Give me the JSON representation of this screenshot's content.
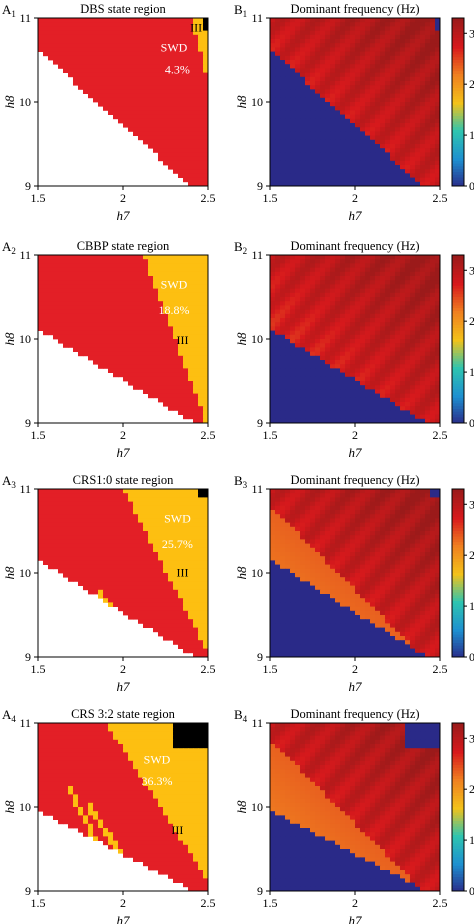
{
  "figure": {
    "colorbar": {
      "ticks": [
        "0",
        "1",
        "2",
        "3"
      ],
      "range": [
        0,
        3.3
      ],
      "colors": [
        "#2a2a88",
        "#1e90d0",
        "#2ec4b0",
        "#f2c21a",
        "#f08020",
        "#d7191c",
        "#9b1a1a"
      ]
    }
  },
  "chart_data": [
    {
      "id": "A1",
      "panel_letter": "A",
      "panel_sub": "1",
      "type": "heatmap",
      "title": "DBS state region",
      "xlabel": "h7",
      "ylabel": "h8",
      "xlim": [
        1.5,
        2.5
      ],
      "ylim": [
        9,
        11
      ],
      "xticks": [
        "1.5",
        "2",
        "2.5"
      ],
      "yticks": [
        "9",
        "10",
        "11"
      ],
      "regions": [
        {
          "name": "white",
          "color": "#ffffff"
        },
        {
          "name": "normal",
          "color": "#e31f26"
        },
        {
          "name": "SWD",
          "color": "#fdbf11"
        },
        {
          "name": "saturated",
          "color": "#000000"
        }
      ],
      "annotations": [
        {
          "text": "III"
        },
        {
          "text": "SWD"
        },
        {
          "text": "4.3%"
        }
      ],
      "swd_fraction": 4.3
    },
    {
      "id": "B1",
      "panel_letter": "B",
      "panel_sub": "1",
      "type": "heatmap",
      "title": "Dominant frequency (Hz)",
      "xlabel": "h7",
      "ylabel": "h8",
      "xlim": [
        1.5,
        2.5
      ],
      "ylim": [
        9,
        11
      ],
      "xticks": [
        "1.5",
        "2",
        "2.5"
      ],
      "yticks": [
        "9",
        "10",
        "11"
      ],
      "zrange": [
        0,
        3.3
      ],
      "low_region_value": 0,
      "max_frequency": 3.3
    },
    {
      "id": "A2",
      "panel_letter": "A",
      "panel_sub": "2",
      "type": "heatmap",
      "title": "CBBP state region",
      "xlabel": "h7",
      "ylabel": "h8",
      "xlim": [
        1.5,
        2.5
      ],
      "ylim": [
        9,
        11
      ],
      "xticks": [
        "1.5",
        "2",
        "2.5"
      ],
      "yticks": [
        "9",
        "10",
        "11"
      ],
      "annotations": [
        {
          "text": "SWD"
        },
        {
          "text": "18.8%"
        },
        {
          "text": "III"
        }
      ],
      "swd_fraction": 18.8
    },
    {
      "id": "B2",
      "panel_letter": "B",
      "panel_sub": "2",
      "type": "heatmap",
      "title": "Dominant frequency (Hz)",
      "xlabel": "h7",
      "ylabel": "h8",
      "xlim": [
        1.5,
        2.5
      ],
      "ylim": [
        9,
        11
      ],
      "xticks": [
        "1.5",
        "2",
        "2.5"
      ],
      "yticks": [
        "9",
        "10",
        "11"
      ],
      "zrange": [
        0,
        3.3
      ],
      "low_region_value": 0,
      "max_frequency": 3.3
    },
    {
      "id": "A3",
      "panel_letter": "A",
      "panel_sub": "3",
      "type": "heatmap",
      "title": "CRS1:0 state region",
      "xlabel": "h7",
      "ylabel": "h8",
      "xlim": [
        1.5,
        2.5
      ],
      "ylim": [
        9,
        11
      ],
      "xticks": [
        "1.5",
        "2",
        "2.5"
      ],
      "yticks": [
        "9",
        "10",
        "11"
      ],
      "annotations": [
        {
          "text": "SWD"
        },
        {
          "text": "25.7%"
        },
        {
          "text": "III"
        }
      ],
      "swd_fraction": 25.7
    },
    {
      "id": "B3",
      "panel_letter": "B",
      "panel_sub": "3",
      "type": "heatmap",
      "title": "Dominant frequency (Hz)",
      "xlabel": "h7",
      "ylabel": "h8",
      "xlim": [
        1.5,
        2.5
      ],
      "ylim": [
        9,
        11
      ],
      "xticks": [
        "1.5",
        "2",
        "2.5"
      ],
      "yticks": [
        "9",
        "10",
        "11"
      ],
      "zrange": [
        0,
        3.3
      ],
      "low_region_value": 0,
      "max_frequency": 3.3
    },
    {
      "id": "A4",
      "panel_letter": "A",
      "panel_sub": "4",
      "type": "heatmap",
      "title": "CRS 3:2 state region",
      "xlabel": "h7",
      "ylabel": "h8",
      "xlim": [
        1.5,
        2.5
      ],
      "ylim": [
        9,
        11
      ],
      "xticks": [
        "1.5",
        "2",
        "2.5"
      ],
      "yticks": [
        "9",
        "10",
        "11"
      ],
      "annotations": [
        {
          "text": "SWD"
        },
        {
          "text": "36.3%"
        },
        {
          "text": "III"
        }
      ],
      "swd_fraction": 36.3
    },
    {
      "id": "B4",
      "panel_letter": "B",
      "panel_sub": "4",
      "type": "heatmap",
      "title": "Dominant frequency (Hz)",
      "xlabel": "h7",
      "ylabel": "h8",
      "xlim": [
        1.5,
        2.5
      ],
      "ylim": [
        9,
        11
      ],
      "xticks": [
        "1.5",
        "2",
        "2.5"
      ],
      "yticks": [
        "9",
        "10",
        "11"
      ],
      "zrange": [
        0,
        3.3
      ],
      "low_region_value": 0,
      "max_frequency": 3.3
    }
  ]
}
